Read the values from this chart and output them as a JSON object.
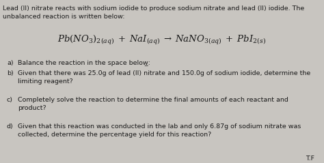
{
  "bg_color": "#c8c5c0",
  "text_color": "#1a1a1a",
  "title_line1": "Lead (II) nitrate reacts with sodium iodide to produce sodium nitrate and lead (II) iodide. The",
  "title_line2": "unbalanced reaction is written below:",
  "equation": "$\\mathit{Pb(NO_3)_2}_{(aq)}\\;+\\;\\mathit{NaI}_{(aq)}\\;\\rightarrow\\;\\mathit{NaNO_3}_{(aq)}\\;+\\;\\mathit{PbI_2}_{(s)}$",
  "item_a_label": "a)",
  "item_a_text": "Balance the reaction in the space below̲:",
  "item_b_label": "b)",
  "item_b_line1": "Given that there was 25.0g of lead (II) nitrate and 150.0g of sodium iodide, determine the",
  "item_b_line2": "limiting reagent?",
  "item_c_label": "c)",
  "item_c_line1": "Completely solve the reaction to determine the final amounts of each reactant and",
  "item_c_line2": "product?",
  "item_d_label": "d)",
  "item_d_line1": "Given that this reaction was conducted in the lab and only 6.87g of sodium nitrate was",
  "item_d_line2": "collected, determine the percentage yield for this reaction?",
  "footer": "T.F",
  "fig_width": 4.74,
  "fig_height": 2.39,
  "dpi": 100
}
